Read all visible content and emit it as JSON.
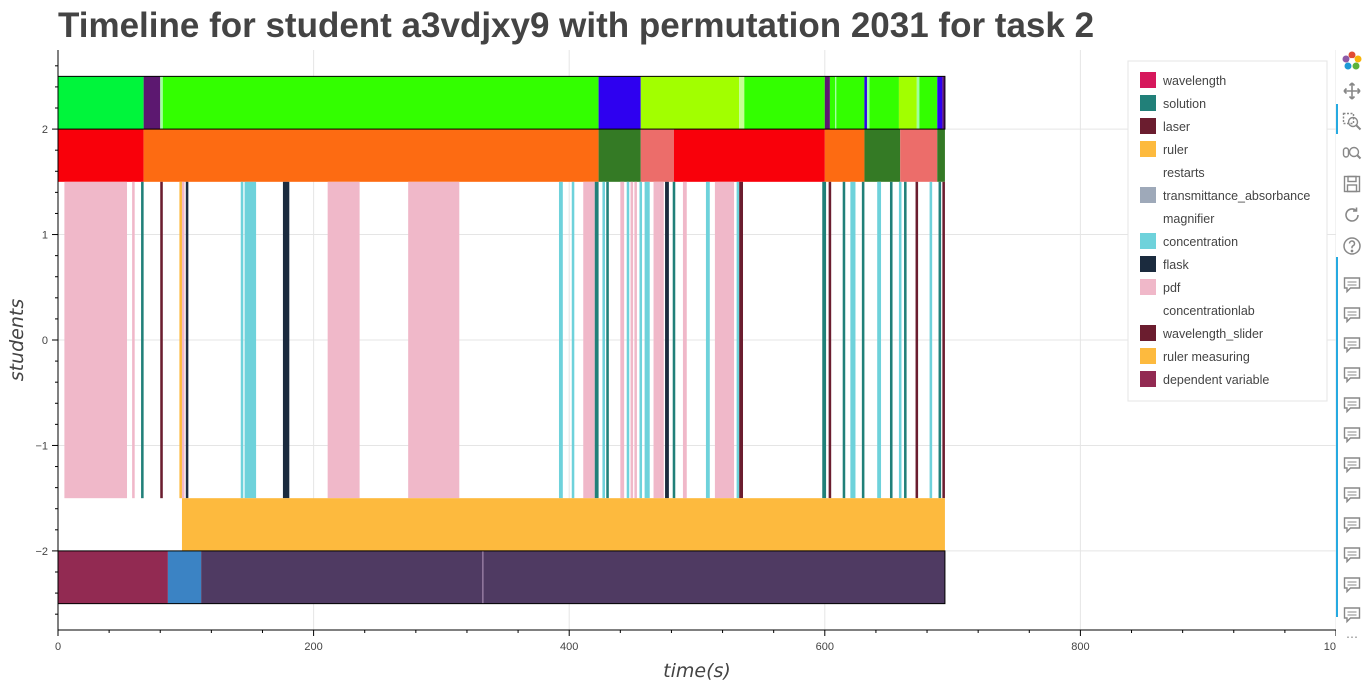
{
  "title": "Timeline for student a3vdjxy9 with permutation 2031 for task 2",
  "chart_data": {
    "type": "timeline",
    "title": "Timeline for student a3vdjxy9 with permutation 2031 for task 2",
    "xlabel": "time(s)",
    "ylabel": "students",
    "xlim": [
      0,
      1000
    ],
    "ylim": [
      -2.75,
      2.75
    ],
    "x_ticks": [
      0,
      200,
      400,
      600,
      800,
      1000
    ],
    "x_tick_labels": [
      "0",
      "200",
      "400",
      "600",
      "800",
      "1000"
    ],
    "y_ticks": [
      2,
      1,
      0,
      -1,
      -2
    ],
    "y_tick_labels": [
      "2",
      "1",
      "0",
      "−1",
      "−2"
    ],
    "grid": true,
    "legend_position": "top-right",
    "legend": [
      {
        "label": "wavelength",
        "color": "#d6185c"
      },
      {
        "label": "solution",
        "color": "#218079"
      },
      {
        "label": "laser",
        "color": "#6b1d2f"
      },
      {
        "label": "ruler",
        "color": "#fdba3e"
      },
      {
        "label": "restarts",
        "color": "none"
      },
      {
        "label": "transmittance_absorbance",
        "color": "#9ea9b9"
      },
      {
        "label": "magnifier",
        "color": "none"
      },
      {
        "label": "concentration",
        "color": "#6ed2db"
      },
      {
        "label": "flask",
        "color": "#1b2b3e"
      },
      {
        "label": "pdf",
        "color": "#f0b8c9"
      },
      {
        "label": "concentrationlab",
        "color": "none"
      },
      {
        "label": "wavelength_slider",
        "color": "#6b1d2f"
      },
      {
        "label": "ruler measuring",
        "color": "#fdba3e"
      },
      {
        "label": "dependent variable",
        "color": "#922a52"
      }
    ],
    "rows": [
      {
        "y0": 2,
        "y1": 2.5,
        "segments": [
          [
            0,
            67,
            "#00f53b"
          ],
          [
            67,
            80,
            "#5c1870"
          ],
          [
            80,
            82,
            "#9fff9f"
          ],
          [
            82,
            423,
            "#33ff00"
          ],
          [
            423,
            456,
            "#2e00f0"
          ],
          [
            456,
            533,
            "#a2ff00"
          ],
          [
            533,
            537,
            "#c4ff93"
          ],
          [
            537,
            600,
            "#33ff00"
          ],
          [
            600,
            604,
            "#5c1870"
          ],
          [
            604,
            608,
            "#33ff00"
          ],
          [
            608,
            609,
            "#9fff9f"
          ],
          [
            609,
            631,
            "#33ff00"
          ],
          [
            631,
            633,
            "#2e00f0"
          ],
          [
            633,
            635,
            "#9fff9f"
          ],
          [
            635,
            658,
            "#33ff00"
          ],
          [
            658,
            672,
            "#a2ff00"
          ],
          [
            672,
            674,
            "#9fff9f"
          ],
          [
            674,
            688,
            "#33ff00"
          ],
          [
            688,
            692,
            "#2e00f0"
          ],
          [
            692,
            694,
            "#5c1870"
          ]
        ]
      },
      {
        "y0": 1.5,
        "y1": 2,
        "segments": [
          [
            0,
            67,
            "#f9000a"
          ],
          [
            67,
            423,
            "#fd6b12"
          ],
          [
            423,
            456,
            "#347a25"
          ],
          [
            456,
            482,
            "#ec6d6a"
          ],
          [
            482,
            600,
            "#f9000a"
          ],
          [
            600,
            631,
            "#fd6b12"
          ],
          [
            631,
            659,
            "#347a25"
          ],
          [
            659,
            688,
            "#ec6d6a"
          ],
          [
            688,
            694,
            "#347a25"
          ]
        ]
      },
      {
        "y0": -1.5,
        "y1": 1.5,
        "segments": [
          [
            5,
            54,
            "#f0b8c9"
          ],
          [
            58,
            60,
            "#f0b8c9"
          ],
          [
            65,
            67,
            "#218079"
          ],
          [
            80,
            82,
            "#6b1d2f"
          ],
          [
            95,
            97,
            "#fdba3e"
          ],
          [
            97,
            99,
            "#f0b8c9"
          ],
          [
            100,
            102,
            "#1b2b3e"
          ],
          [
            143,
            145,
            "#6ed2db"
          ],
          [
            146,
            155,
            "#6ed2db"
          ],
          [
            176,
            181,
            "#1b2b3e"
          ],
          [
            211,
            236,
            "#f0b8c9"
          ],
          [
            274,
            314,
            "#f0b8c9"
          ],
          [
            392,
            395,
            "#6ed2db"
          ],
          [
            402,
            404,
            "#6ed2db"
          ],
          [
            411,
            420,
            "#f0b8c9"
          ],
          [
            420,
            423,
            "#218079"
          ],
          [
            426,
            428,
            "#6ed2db"
          ],
          [
            429,
            431,
            "#218079"
          ],
          [
            440,
            443,
            "#f0b8c9"
          ],
          [
            445,
            447,
            "#6ed2db"
          ],
          [
            448,
            450,
            "#f0b8c9"
          ],
          [
            451,
            453,
            "#f0b8c9"
          ],
          [
            455,
            457,
            "#6ed2db"
          ],
          [
            459,
            463,
            "#6ed2db"
          ],
          [
            466,
            474,
            "#f0b8c9"
          ],
          [
            475,
            478,
            "#1b2b3e"
          ],
          [
            481,
            483,
            "#218079"
          ],
          [
            489,
            492,
            "#f0b8c9"
          ],
          [
            507,
            510,
            "#6ed2db"
          ],
          [
            514,
            529,
            "#f0b8c9"
          ],
          [
            531,
            533,
            "#6ed2db"
          ],
          [
            533,
            536,
            "#6b1d2f"
          ],
          [
            598,
            601,
            "#218079"
          ],
          [
            603,
            605,
            "#6b1d2f"
          ],
          [
            614,
            616,
            "#218079"
          ],
          [
            620,
            624,
            "#6ed2db"
          ],
          [
            629,
            631,
            "#218079"
          ],
          [
            641,
            644,
            "#6ed2db"
          ],
          [
            651,
            653,
            "#218079"
          ],
          [
            658,
            660,
            "#6ed2db"
          ],
          [
            662,
            664,
            "#218079"
          ],
          [
            671,
            673,
            "#6b1d2f"
          ],
          [
            682,
            684,
            "#6ed2db"
          ],
          [
            689,
            691,
            "#218079"
          ],
          [
            692,
            694,
            "#6b1d2f"
          ]
        ]
      },
      {
        "y0": -2,
        "y1": -1.5,
        "segments": [
          [
            97,
            694,
            "#fdba3e"
          ]
        ]
      },
      {
        "y0": -2.5,
        "y1": -2,
        "segments": [
          [
            0,
            86,
            "#922a52"
          ],
          [
            86,
            112,
            "#3b83c4"
          ],
          [
            112,
            332,
            "#4f3a62"
          ],
          [
            332,
            333,
            "#8a6c98"
          ],
          [
            333,
            694,
            "#4f3a62"
          ]
        ]
      }
    ],
    "row_outlines": [
      {
        "x0": 0,
        "x1": 694,
        "y0": 2,
        "y1": 2.5
      },
      {
        "x0": 0,
        "x1": 694,
        "y0": -2.5,
        "y1": -2
      }
    ]
  },
  "toolbar": {
    "tools": [
      {
        "name": "bokeh-logo-icon",
        "interactable": false
      },
      {
        "name": "pan-icon",
        "interactable": true,
        "active": true
      },
      {
        "name": "box-zoom-icon",
        "interactable": true
      },
      {
        "name": "wheel-zoom-icon",
        "interactable": true
      },
      {
        "name": "save-icon",
        "interactable": true
      },
      {
        "name": "reset-icon",
        "interactable": true
      },
      {
        "name": "help-icon",
        "interactable": true
      },
      {
        "name": "hover-icon",
        "interactable": true,
        "count": 12
      }
    ],
    "more_label": "⋯"
  }
}
